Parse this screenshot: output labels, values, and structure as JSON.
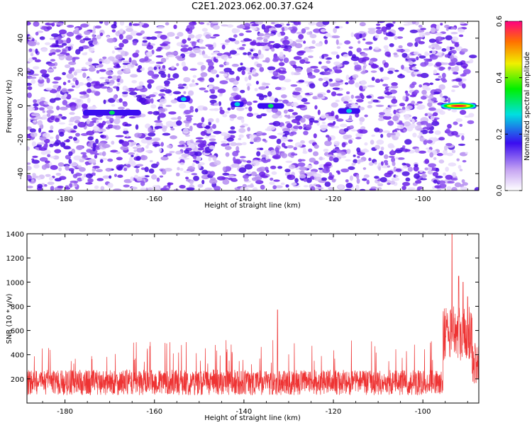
{
  "title": "C2E1.2023.062.00.37.G24",
  "chart_data": [
    {
      "type": "heatmap",
      "title": "C2E1.2023.062.00.37.G24",
      "xlabel": "Height of straight line (km)",
      "ylabel": "Frequency (Hz)",
      "xlim": [
        -188.5,
        -87.5
      ],
      "ylim": [
        -50,
        50
      ],
      "xticks": [
        -180,
        -160,
        -140,
        -120,
        -100
      ],
      "yticks": [
        -40,
        -20,
        0,
        20,
        40
      ],
      "colorbar": {
        "label": "Normalized spectral amplitude",
        "range": [
          0.0,
          0.6
        ],
        "ticks": [
          0.0,
          0.2,
          0.4,
          0.6
        ]
      },
      "features": [
        {
          "x_range": [
            -176,
            -163
          ],
          "freq": -4,
          "peak_amplitude": 0.22
        },
        {
          "x_range": [
            -155,
            -152
          ],
          "freq": 4,
          "peak_amplitude": 0.15
        },
        {
          "x_range": [
            -143,
            -140
          ],
          "freq": 1,
          "peak_amplitude": 0.18
        },
        {
          "x_range": [
            -137,
            -131
          ],
          "freq": 0,
          "peak_amplitude": 0.2
        },
        {
          "x_range": [
            -119,
            -114
          ],
          "freq": -3,
          "peak_amplitude": 0.18
        },
        {
          "x_range": [
            -96,
            -88
          ],
          "freq": 0,
          "peak_amplitude": 0.6
        }
      ]
    },
    {
      "type": "line",
      "xlabel": "Height of straight line (km)",
      "ylabel": "SNR (10 * v/v)",
      "xlim": [
        -188.5,
        -87.5
      ],
      "ylim": [
        0,
        1400
      ],
      "xticks": [
        -180,
        -160,
        -140,
        -120,
        -100
      ],
      "yticks": [
        200,
        400,
        600,
        800,
        1000,
        1200,
        1400
      ],
      "color": "#ee3333",
      "baseline": {
        "mean": 170,
        "spread": 150
      },
      "peaks": [
        {
          "x": -132.5,
          "y": 770
        },
        {
          "x": -93.5,
          "y": 1400
        },
        {
          "x": -92.0,
          "y": 1050
        },
        {
          "x": -91.0,
          "y": 1000
        },
        {
          "x": -90.0,
          "y": 880
        }
      ]
    }
  ]
}
